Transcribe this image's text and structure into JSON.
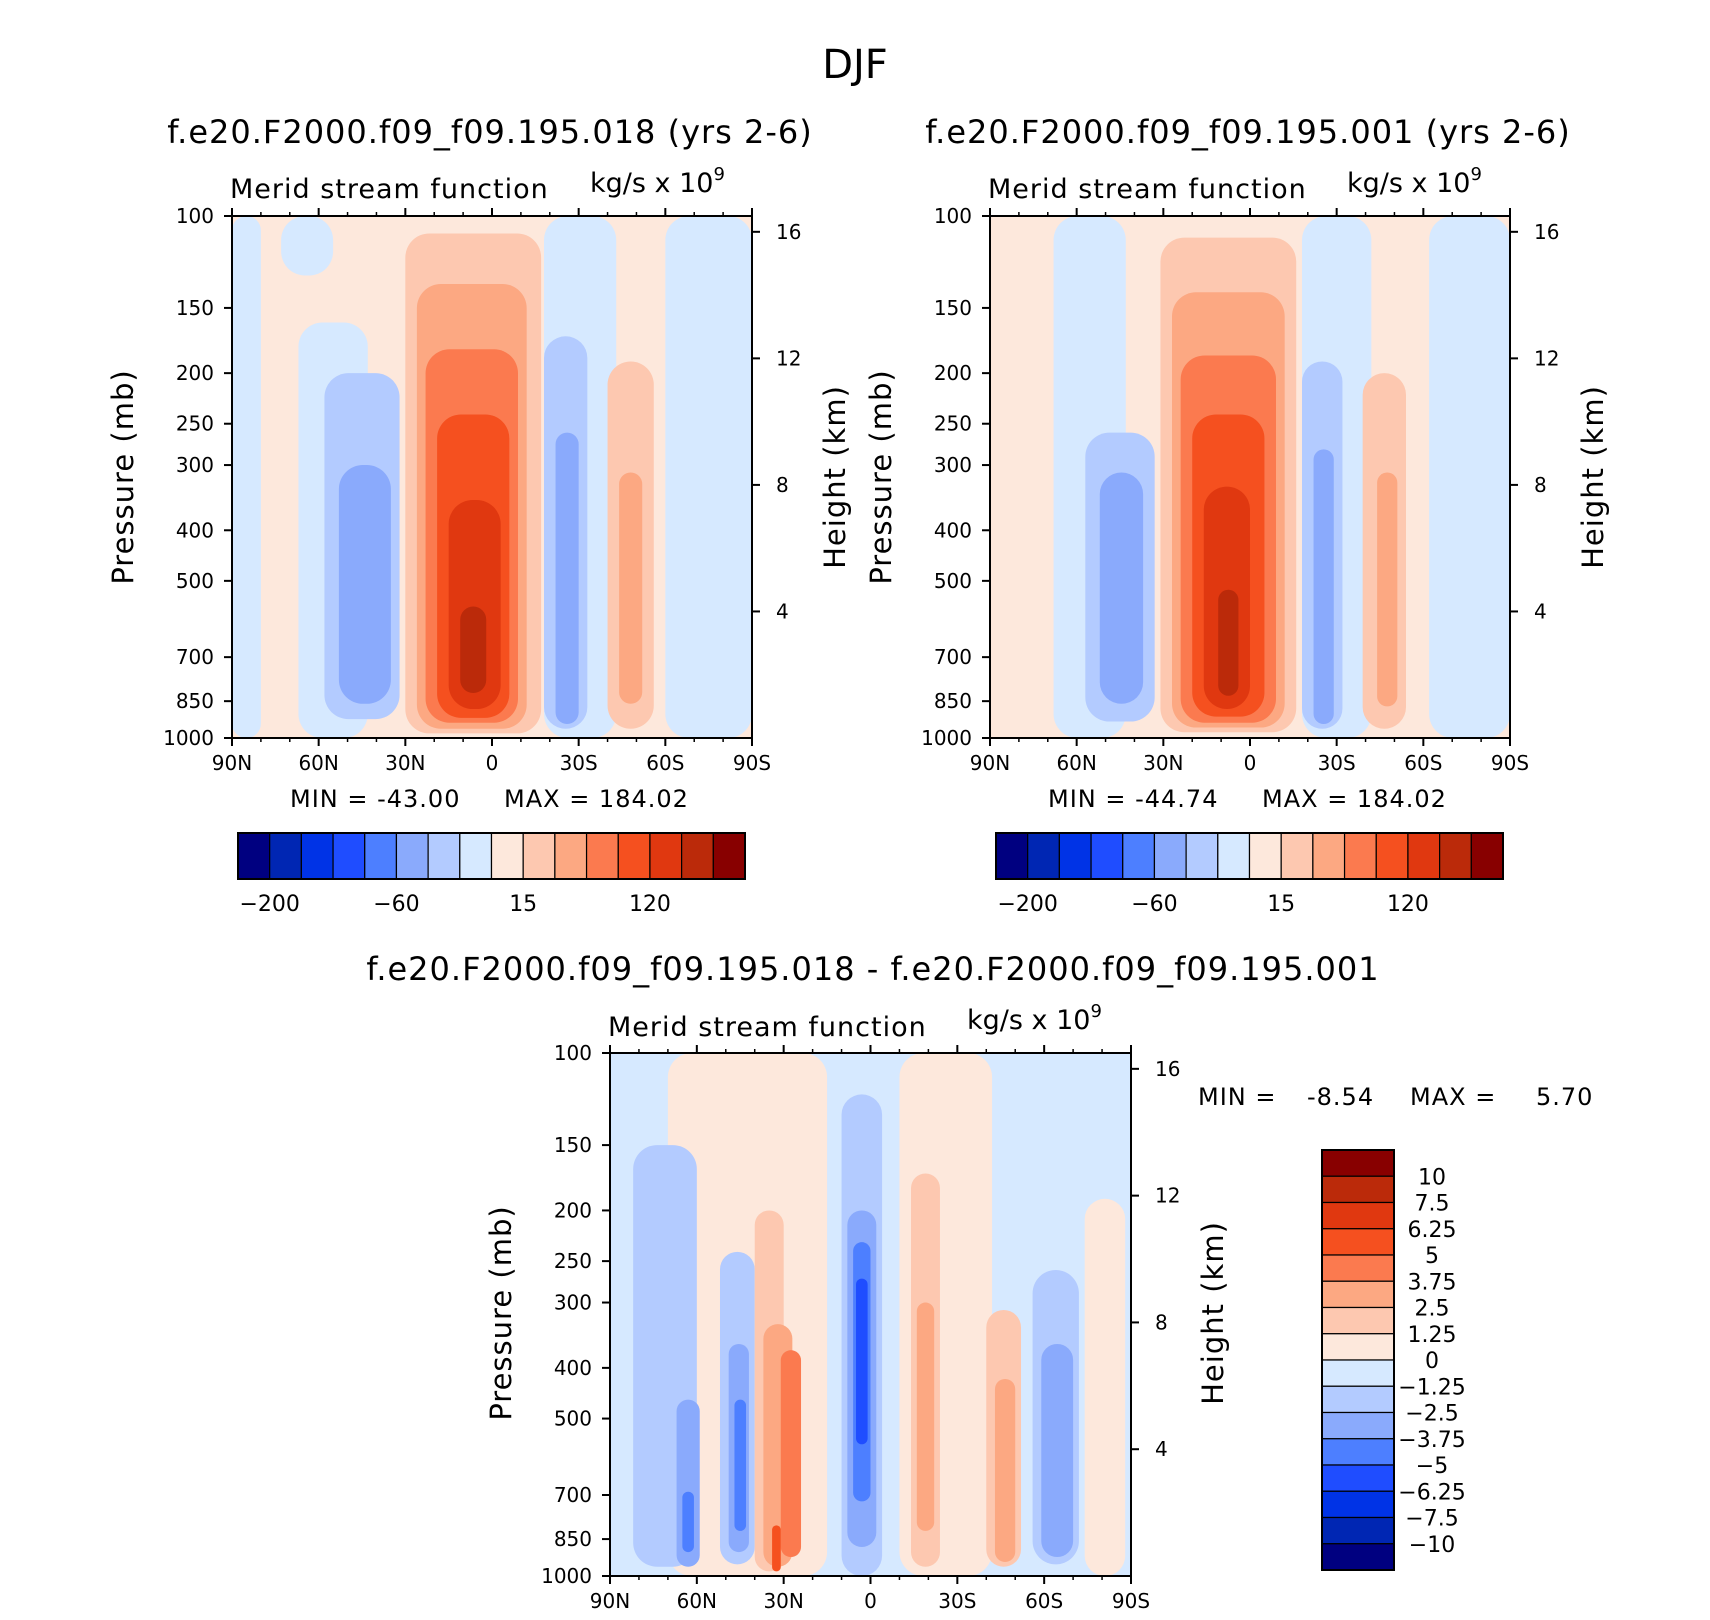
{
  "figure": {
    "title": "DJF",
    "colors": {
      "palette": [
        "#000080",
        "#0026b3",
        "#0033e6",
        "#1f4dff",
        "#4d7fff",
        "#8aaafc",
        "#b3cbff",
        "#d6e9ff",
        "#fde8dc",
        "#fdc8b0",
        "#fca882",
        "#fb7a4f",
        "#f5501f",
        "#e03810",
        "#bb2a0a",
        "#880000"
      ]
    }
  },
  "chart_data": [
    {
      "id": "case1",
      "type": "contour",
      "title": "f.e20.F2000.f09_f09.195.018 (yrs 2-6)",
      "subtitle_left": "Merid stream function",
      "subtitle_right": "kg/s x 10",
      "subtitle_right_exponent": "9",
      "xlabel": "",
      "ylabel": "Pressure (mb)",
      "y2label": "Height (km)",
      "x_ticks": [
        "90N",
        "60N",
        "30N",
        "0",
        "30S",
        "60S",
        "90S"
      ],
      "x_range": [
        90,
        -90
      ],
      "y_ticks": [
        100,
        150,
        200,
        250,
        300,
        400,
        500,
        700,
        850,
        1000
      ],
      "y_scale": "log",
      "y_range": [
        1000,
        100
      ],
      "y2_ticks": [
        4,
        8,
        12,
        16
      ],
      "min_text": "MIN = -43.00",
      "max_text": "MAX = 184.02",
      "min": -43.0,
      "max": 184.02,
      "colorbar": {
        "orientation": "horizontal",
        "levels": [
          -200,
          -160,
          -120,
          -80,
          -60,
          -40,
          -20,
          0,
          15,
          30,
          45,
          60,
          80,
          100,
          120
        ],
        "labels": [
          "-200",
          "-60",
          "15",
          "120"
        ]
      },
      "cells": [
        {
          "lat": [
            -90,
            90
          ],
          "p": [
            1000,
            100
          ],
          "level": 8
        },
        {
          "lat": [
            90,
            80
          ],
          "p": [
            1000,
            100
          ],
          "level": 7
        },
        {
          "lat": [
            73,
            55
          ],
          "p": [
            130,
            100
          ],
          "level": 7
        },
        {
          "lat": [
            67,
            43
          ],
          "p": [
            1000,
            160
          ],
          "level": 7
        },
        {
          "lat": [
            -18,
            -43
          ],
          "p": [
            1000,
            100
          ],
          "level": 7
        },
        {
          "lat": [
            -60,
            -90
          ],
          "p": [
            1000,
            100
          ],
          "level": 7
        },
        {
          "lat": [
            58,
            32
          ],
          "p": [
            920,
            200
          ],
          "level": 6
        },
        {
          "lat": [
            53,
            35
          ],
          "p": [
            860,
            300
          ],
          "level": 5
        },
        {
          "lat": [
            -18,
            -33
          ],
          "p": [
            960,
            170
          ],
          "level": 6
        },
        {
          "lat": [
            -22,
            -30
          ],
          "p": [
            940,
            260
          ],
          "level": 5
        },
        {
          "lat": [
            30,
            -17
          ],
          "p": [
            980,
            108
          ],
          "level": 9
        },
        {
          "lat": [
            26,
            -12
          ],
          "p": [
            960,
            135
          ],
          "level": 10
        },
        {
          "lat": [
            23,
            -9
          ],
          "p": [
            935,
            180
          ],
          "level": 11
        },
        {
          "lat": [
            19,
            -6
          ],
          "p": [
            915,
            240
          ],
          "level": 12
        },
        {
          "lat": [
            15,
            -3
          ],
          "p": [
            880,
            350
          ],
          "level": 13
        },
        {
          "lat": [
            11,
            2
          ],
          "p": [
            820,
            560
          ],
          "level": 14
        },
        {
          "lat": [
            -40,
            -56
          ],
          "p": [
            960,
            190
          ],
          "level": 9
        },
        {
          "lat": [
            -44,
            -52
          ],
          "p": [
            860,
            310
          ],
          "level": 10
        }
      ]
    },
    {
      "id": "case2",
      "type": "contour",
      "title": "f.e20.F2000.f09_f09.195.001 (yrs 2-6)",
      "subtitle_left": "Merid stream function",
      "subtitle_right": "kg/s x 10",
      "subtitle_right_exponent": "9",
      "xlabel": "",
      "ylabel": "Pressure (mb)",
      "y2label": "Height (km)",
      "x_ticks": [
        "90N",
        "60N",
        "30N",
        "0",
        "30S",
        "60S",
        "90S"
      ],
      "x_range": [
        90,
        -90
      ],
      "y_ticks": [
        100,
        150,
        200,
        250,
        300,
        400,
        500,
        700,
        850,
        1000
      ],
      "y_scale": "log",
      "y_range": [
        1000,
        100
      ],
      "y2_ticks": [
        4,
        8,
        12,
        16
      ],
      "min_text": "MIN = -44.74",
      "max_text": "MAX = 184.02",
      "min": -44.74,
      "max": 184.02,
      "colorbar": {
        "orientation": "horizontal",
        "levels": [
          -200,
          -160,
          -120,
          -80,
          -60,
          -40,
          -20,
          0,
          15,
          30,
          45,
          60,
          80,
          100,
          120
        ],
        "labels": [
          "-200",
          "-60",
          "15",
          "120"
        ]
      },
      "cells": [
        {
          "lat": [
            -90,
            90
          ],
          "p": [
            1000,
            100
          ],
          "level": 8
        },
        {
          "lat": [
            68,
            43
          ],
          "p": [
            1000,
            100
          ],
          "level": 7
        },
        {
          "lat": [
            -18,
            -42
          ],
          "p": [
            1000,
            100
          ],
          "level": 7
        },
        {
          "lat": [
            -62,
            -90
          ],
          "p": [
            1000,
            100
          ],
          "level": 7
        },
        {
          "lat": [
            57,
            33
          ],
          "p": [
            930,
            260
          ],
          "level": 6
        },
        {
          "lat": [
            52,
            37
          ],
          "p": [
            860,
            310
          ],
          "level": 5
        },
        {
          "lat": [
            -18,
            -32
          ],
          "p": [
            960,
            190
          ],
          "level": 6
        },
        {
          "lat": [
            -22,
            -29
          ],
          "p": [
            940,
            280
          ],
          "level": 5
        },
        {
          "lat": [
            31,
            -16
          ],
          "p": [
            975,
            110
          ],
          "level": 9
        },
        {
          "lat": [
            27,
            -12
          ],
          "p": [
            955,
            140
          ],
          "level": 10
        },
        {
          "lat": [
            24,
            -9
          ],
          "p": [
            935,
            185
          ],
          "level": 11
        },
        {
          "lat": [
            20,
            -5
          ],
          "p": [
            910,
            240
          ],
          "level": 12
        },
        {
          "lat": [
            16,
            0
          ],
          "p": [
            880,
            330
          ],
          "level": 13
        },
        {
          "lat": [
            11,
            4
          ],
          "p": [
            830,
            520
          ],
          "level": 14
        },
        {
          "lat": [
            -39,
            -54
          ],
          "p": [
            960,
            200
          ],
          "level": 9
        },
        {
          "lat": [
            -44,
            -51
          ],
          "p": [
            870,
            310
          ],
          "level": 10
        }
      ]
    },
    {
      "id": "diff",
      "type": "contour",
      "title": "f.e20.F2000.f09_f09.195.018 - f.e20.F2000.f09_f09.195.001",
      "subtitle_left": "Merid stream function",
      "subtitle_right": "kg/s x 10",
      "subtitle_right_exponent": "9",
      "xlabel": "",
      "ylabel": "Pressure (mb)",
      "y2label": "Height (km)",
      "x_ticks": [
        "90N",
        "60N",
        "30N",
        "0",
        "30S",
        "60S",
        "90S"
      ],
      "x_range": [
        90,
        -90
      ],
      "y_ticks": [
        100,
        150,
        200,
        250,
        300,
        400,
        500,
        700,
        850,
        1000
      ],
      "y_scale": "log",
      "y_range": [
        1000,
        100
      ],
      "y2_ticks": [
        4,
        8,
        12,
        16
      ],
      "min_label": "MIN =",
      "min_value": "-8.54",
      "max_label": "MAX =",
      "max_value": "5.70",
      "min": -8.54,
      "max": 5.7,
      "colorbar": {
        "orientation": "vertical",
        "levels": [
          -10,
          -7.5,
          -6.25,
          -5,
          -3.75,
          -2.5,
          -1.25,
          0,
          1.25,
          2.5,
          3.75,
          5,
          6.25,
          7.5,
          10
        ],
        "labels": [
          "10",
          "7.5",
          "6.25",
          "5",
          "3.75",
          "2.5",
          "1.25",
          "0",
          "-1.25",
          "-2.5",
          "-3.75",
          "-5",
          "-6.25",
          "-7.5",
          "-10"
        ]
      },
      "cells": [
        {
          "lat": [
            -90,
            90
          ],
          "p": [
            1000,
            100
          ],
          "level": 7
        },
        {
          "lat": [
            70,
            15
          ],
          "p": [
            1000,
            100
          ],
          "level": 8
        },
        {
          "lat": [
            -10,
            -42
          ],
          "p": [
            1000,
            100
          ],
          "level": 8
        },
        {
          "lat": [
            82,
            60
          ],
          "p": [
            960,
            150
          ],
          "level": 6
        },
        {
          "lat": [
            67,
            59
          ],
          "p": [
            960,
            460
          ],
          "level": 5
        },
        {
          "lat": [
            65,
            61
          ],
          "p": [
            900,
            690
          ],
          "level": 4
        },
        {
          "lat": [
            52,
            40
          ],
          "p": [
            950,
            240
          ],
          "level": 6
        },
        {
          "lat": [
            49,
            42
          ],
          "p": [
            900,
            360
          ],
          "level": 5
        },
        {
          "lat": [
            47,
            43
          ],
          "p": [
            820,
            460
          ],
          "level": 4
        },
        {
          "lat": [
            40,
            30
          ],
          "p": [
            980,
            200
          ],
          "level": 9
        },
        {
          "lat": [
            37,
            27
          ],
          "p": [
            960,
            330
          ],
          "level": 10
        },
        {
          "lat": [
            31,
            24
          ],
          "p": [
            920,
            370
          ],
          "level": 11
        },
        {
          "lat": [
            34,
            31
          ],
          "p": [
            980,
            800
          ],
          "level": 12
        },
        {
          "lat": [
            10,
            -4
          ],
          "p": [
            1000,
            120
          ],
          "level": 6
        },
        {
          "lat": [
            8,
            -2
          ],
          "p": [
            880,
            200
          ],
          "level": 5
        },
        {
          "lat": [
            6,
            0
          ],
          "p": [
            720,
            230
          ],
          "level": 4
        },
        {
          "lat": [
            5,
            1
          ],
          "p": [
            560,
            270
          ],
          "level": 3
        },
        {
          "lat": [
            -14,
            -24
          ],
          "p": [
            960,
            170
          ],
          "level": 9
        },
        {
          "lat": [
            -16,
            -22
          ],
          "p": [
            820,
            300
          ],
          "level": 10
        },
        {
          "lat": [
            -40,
            -52
          ],
          "p": [
            960,
            310
          ],
          "level": 9
        },
        {
          "lat": [
            -43,
            -50
          ],
          "p": [
            940,
            420
          ],
          "level": 10
        },
        {
          "lat": [
            -56,
            -72
          ],
          "p": [
            950,
            260
          ],
          "level": 6
        },
        {
          "lat": [
            -59,
            -70
          ],
          "p": [
            920,
            360
          ],
          "level": 5
        },
        {
          "lat": [
            -74,
            -88
          ],
          "p": [
            1000,
            190
          ],
          "level": 8
        }
      ]
    }
  ]
}
